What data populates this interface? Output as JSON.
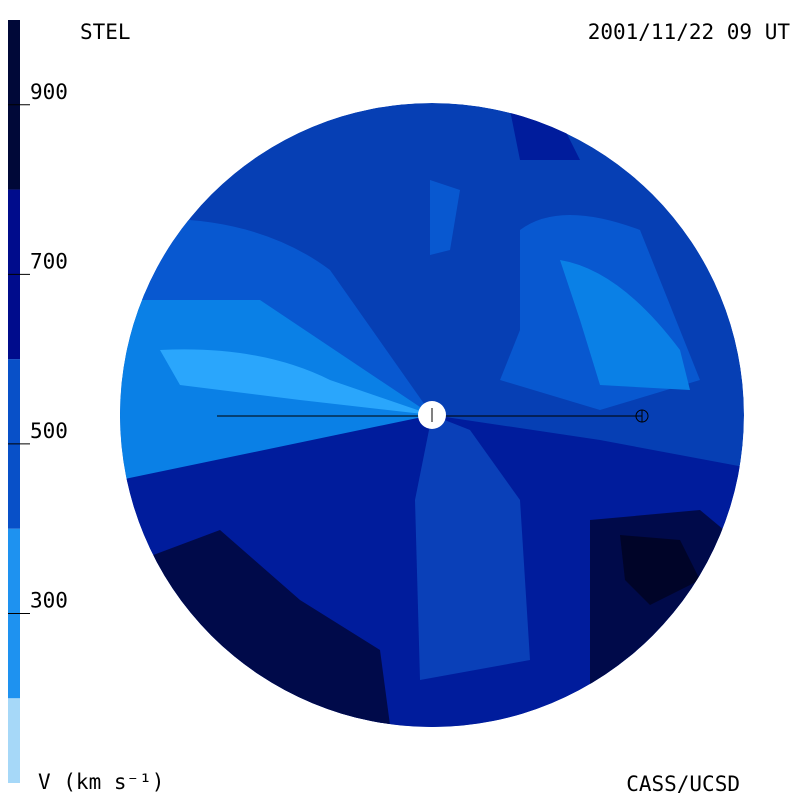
{
  "chart_data": {
    "type": "velocity-map",
    "title": "STEL",
    "date": "2001/11/22 09 UT",
    "credit": "CASS/UCSD",
    "colorbar_label": "V (km s⁻¹)",
    "ylim": [
      100,
      1000
    ],
    "yticks": [
      300,
      500,
      700,
      900
    ],
    "levels": [
      100,
      200,
      400,
      600,
      800,
      1000
    ],
    "colors": [
      "#a6d8f8",
      "#1e92f0",
      "#0850c8",
      "#000c8c",
      "#000838"
    ]
  }
}
